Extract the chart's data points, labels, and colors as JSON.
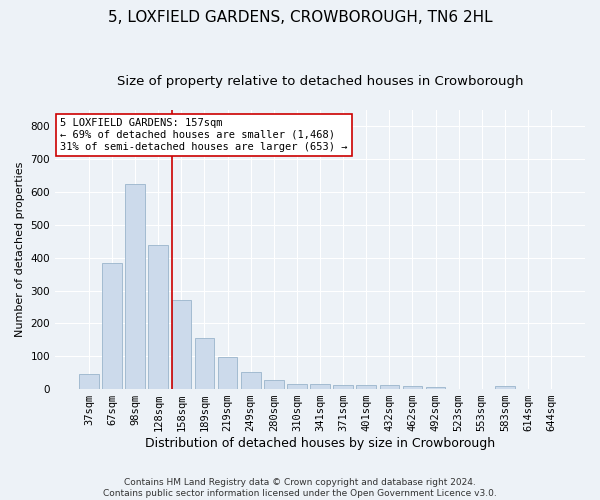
{
  "title": "5, LOXFIELD GARDENS, CROWBOROUGH, TN6 2HL",
  "subtitle": "Size of property relative to detached houses in Crowborough",
  "xlabel": "Distribution of detached houses by size in Crowborough",
  "ylabel": "Number of detached properties",
  "categories": [
    "37sqm",
    "67sqm",
    "98sqm",
    "128sqm",
    "158sqm",
    "189sqm",
    "219sqm",
    "249sqm",
    "280sqm",
    "310sqm",
    "341sqm",
    "371sqm",
    "401sqm",
    "432sqm",
    "462sqm",
    "492sqm",
    "523sqm",
    "553sqm",
    "583sqm",
    "614sqm",
    "644sqm"
  ],
  "values": [
    47,
    383,
    625,
    440,
    270,
    155,
    97,
    52,
    27,
    15,
    15,
    12,
    12,
    12,
    10,
    5,
    0,
    0,
    8,
    0,
    0
  ],
  "bar_color": "#ccdaeb",
  "bar_edgecolor": "#9ab5cc",
  "vline_color": "#cc0000",
  "annotation_text": "5 LOXFIELD GARDENS: 157sqm\n← 69% of detached houses are smaller (1,468)\n31% of semi-detached houses are larger (653) →",
  "annotation_box_facecolor": "#ffffff",
  "annotation_box_edgecolor": "#cc0000",
  "ylim": [
    0,
    850
  ],
  "yticks": [
    0,
    100,
    200,
    300,
    400,
    500,
    600,
    700,
    800
  ],
  "background_color": "#edf2f7",
  "grid_color": "#ffffff",
  "footer": "Contains HM Land Registry data © Crown copyright and database right 2024.\nContains public sector information licensed under the Open Government Licence v3.0.",
  "title_fontsize": 11,
  "subtitle_fontsize": 9.5,
  "xlabel_fontsize": 9,
  "ylabel_fontsize": 8,
  "tick_fontsize": 7.5,
  "footer_fontsize": 6.5,
  "annot_fontsize": 7.5
}
